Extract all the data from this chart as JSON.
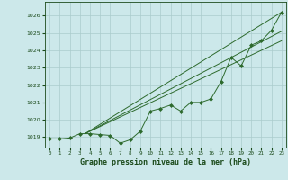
{
  "title": "Graphe pression niveau de la mer (hPa)",
  "bg_color": "#cce8ea",
  "grid_color": "#aacccc",
  "line_color": "#2d6a2d",
  "text_color": "#1a4a1a",
  "xlim": [
    -0.5,
    23.5
  ],
  "ylim": [
    1018.4,
    1026.8
  ],
  "yticks": [
    1019,
    1020,
    1021,
    1022,
    1023,
    1024,
    1025,
    1026
  ],
  "xticks": [
    0,
    1,
    2,
    3,
    4,
    5,
    6,
    7,
    8,
    9,
    10,
    11,
    12,
    13,
    14,
    15,
    16,
    17,
    18,
    19,
    20,
    21,
    22,
    23
  ],
  "main_x": [
    0,
    1,
    2,
    3,
    4,
    5,
    6,
    7,
    8,
    9,
    10,
    11,
    12,
    13,
    14,
    15,
    16,
    17,
    18,
    19,
    20,
    21,
    22,
    23
  ],
  "main_y": [
    1018.9,
    1018.9,
    1018.95,
    1019.2,
    1019.2,
    1019.15,
    1019.1,
    1018.65,
    1018.85,
    1019.35,
    1020.5,
    1020.65,
    1020.85,
    1020.5,
    1021.0,
    1021.0,
    1021.2,
    1022.2,
    1023.6,
    1023.1,
    1024.3,
    1024.55,
    1025.15,
    1026.2
  ],
  "trend1_x": [
    3.5,
    23
  ],
  "trend1_y": [
    1019.2,
    1026.2
  ],
  "trend2_x": [
    3.5,
    23
  ],
  "trend2_y": [
    1019.2,
    1025.1
  ],
  "trend3_x": [
    3.5,
    23
  ],
  "trend3_y": [
    1019.2,
    1024.55
  ]
}
